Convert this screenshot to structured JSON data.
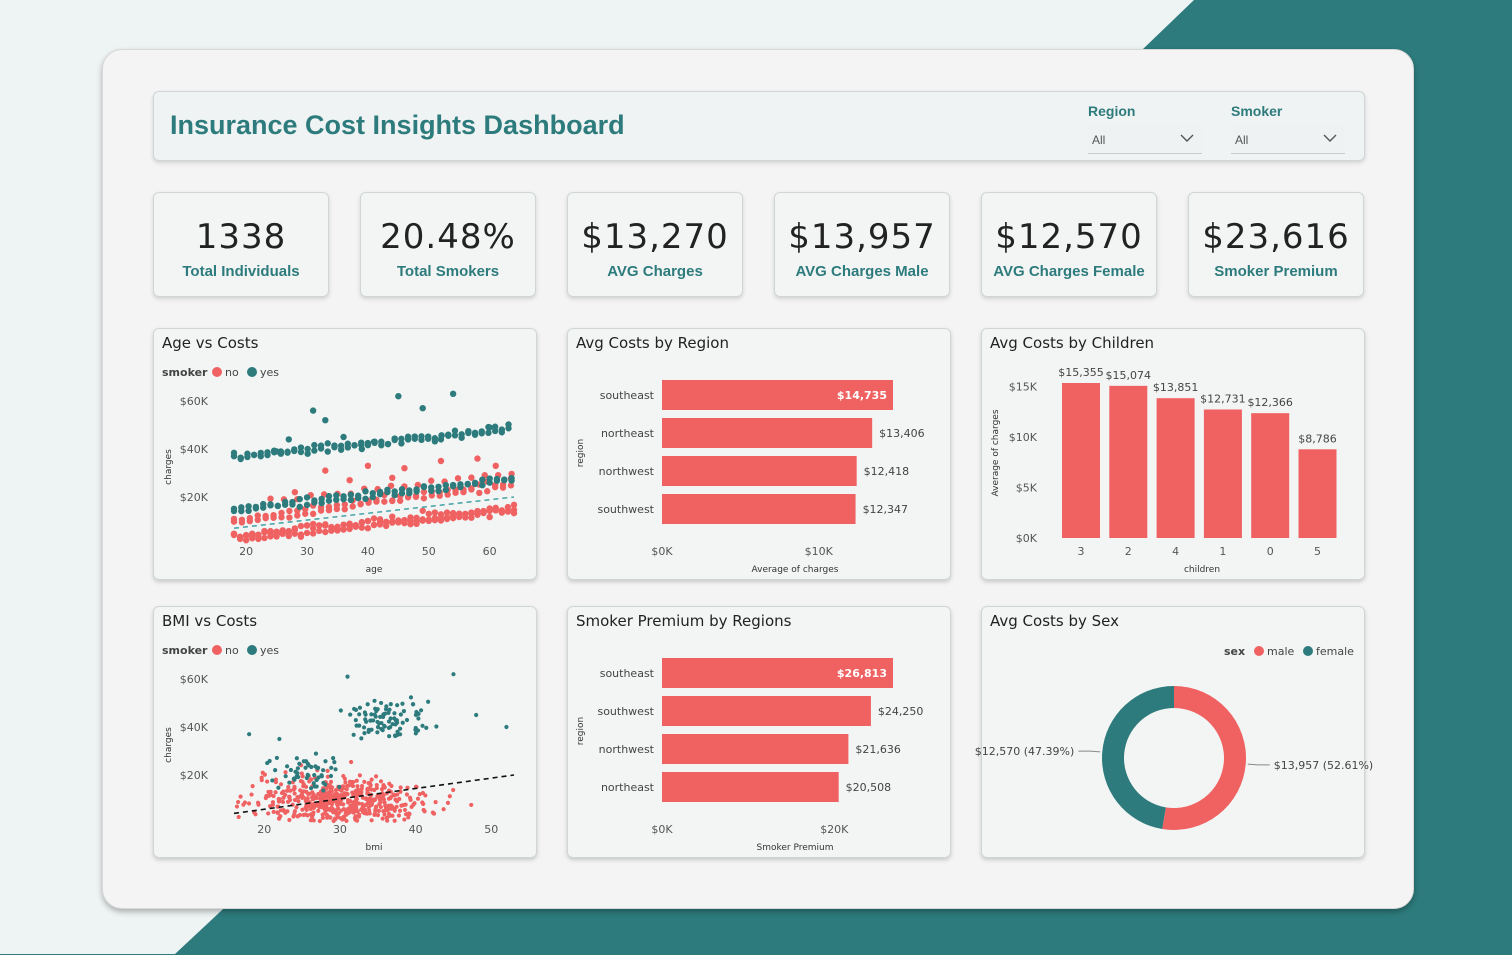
{
  "header": {
    "title": "Insurance Cost Insights Dashboard",
    "slicers": [
      {
        "label": "Region",
        "value": "All"
      },
      {
        "label": "Smoker",
        "value": "All"
      }
    ]
  },
  "kpis": [
    {
      "value": "1338",
      "label": "Total Individuals"
    },
    {
      "value": "20.48%",
      "label": "Total Smokers"
    },
    {
      "value": "$13,270",
      "label": "AVG Charges"
    },
    {
      "value": "$13,957",
      "label": "AVG Charges Male"
    },
    {
      "value": "$12,570",
      "label": "AVG Charges Female"
    },
    {
      "value": "$23,616",
      "label": "Smoker Premium"
    }
  ],
  "colors": {
    "coral": "#f06262",
    "teal": "#2d7b7c"
  },
  "chart_data": [
    {
      "id": "age",
      "type": "scatter",
      "title": "Age vs Costs",
      "xlabel": "age",
      "ylabel": "charges",
      "xlim": [
        18,
        64
      ],
      "ylim": [
        0,
        65000
      ],
      "xticks": [
        20,
        30,
        40,
        50,
        60
      ],
      "yticks": [
        {
          "v": 20000,
          "label": "$20K"
        },
        {
          "v": 40000,
          "label": "$40K"
        },
        {
          "v": 60000,
          "label": "$60K"
        }
      ],
      "legend": {
        "title": "smoker",
        "items": [
          "no",
          "yes"
        ],
        "placement": "top-left"
      },
      "series": [
        {
          "name": "no",
          "color": "#f06262",
          "bands": [
            {
              "x0": 18,
              "x1": 64,
              "y0": 2000,
              "y1": 14000,
              "step": 1,
              "rows": [
                0,
                0.35,
                0.7
              ]
            },
            {
              "x0": 18,
              "x1": 64,
              "y0": 9000,
              "y1": 25000,
              "step": 1.3,
              "rows": [
                0,
                0.5
              ]
            },
            {
              "x0": 24,
              "x1": 64,
              "y0": 18000,
              "y1": 30000,
              "step": 2.2,
              "rows": [
                0
              ]
            }
          ],
          "outliers": [
            [
              28,
              22000
            ],
            [
              33,
              31000
            ],
            [
              40,
              33000
            ],
            [
              46,
              32000
            ],
            [
              52,
              35000
            ],
            [
              58,
              36000
            ],
            [
              61,
              33000
            ],
            [
              44,
              28000
            ],
            [
              37,
              27000
            ]
          ]
        },
        {
          "name": "yes",
          "color": "#2d7b7c",
          "bands": [
            {
              "x0": 18,
              "x1": 64,
              "y0": 14000,
              "y1": 27000,
              "step": 1.2,
              "rows": [
                0,
                0.5
              ]
            },
            {
              "x0": 18,
              "x1": 64,
              "y0": 36000,
              "y1": 48000,
              "step": 1.1,
              "rows": [
                0,
                0.45
              ]
            }
          ],
          "outliers": [
            [
              27,
              44000
            ],
            [
              31,
              56000
            ],
            [
              33,
              52000
            ],
            [
              36,
              45000
            ],
            [
              41,
              43000
            ],
            [
              45,
              62000
            ],
            [
              49,
              57000
            ],
            [
              52,
              44000
            ],
            [
              54,
              63000
            ],
            [
              60,
              49000
            ],
            [
              25,
              39000
            ],
            [
              39,
              40000
            ]
          ]
        }
      ],
      "trend": {
        "x": [
          18,
          64
        ],
        "y": [
          7000,
          20000
        ],
        "color": "#4fa7a8"
      }
    },
    {
      "id": "region",
      "type": "bar",
      "orientation": "horizontal",
      "title": "Avg Costs by Region",
      "xlabel": "Average of charges",
      "ylabel": "region",
      "categories": [
        "southeast",
        "northeast",
        "northwest",
        "southwest"
      ],
      "values": [
        14735,
        13406,
        12418,
        12347
      ],
      "value_labels": [
        "$14,735",
        "$13,406",
        "$12,418",
        "$12,347"
      ],
      "xlim": [
        0,
        14735
      ],
      "xticks": [
        {
          "v": 0,
          "label": "$0K"
        },
        {
          "v": 10000,
          "label": "$10K"
        }
      ]
    },
    {
      "id": "children",
      "type": "bar",
      "orientation": "vertical",
      "title": "Avg Costs by Children",
      "xlabel": "children",
      "ylabel": "Average of charges",
      "categories": [
        "3",
        "2",
        "4",
        "1",
        "0",
        "5"
      ],
      "values": [
        15355,
        15074,
        13851,
        12731,
        12366,
        8786
      ],
      "value_labels": [
        "$15,355",
        "$15,074",
        "$13,851",
        "$12,731",
        "$12,366",
        "$8,786"
      ],
      "ylim": [
        0,
        15355
      ],
      "yticks": [
        {
          "v": 0,
          "label": "$0K"
        },
        {
          "v": 5000,
          "label": "$5K"
        },
        {
          "v": 10000,
          "label": "$10K"
        },
        {
          "v": 15000,
          "label": "$15K"
        }
      ]
    },
    {
      "id": "bmi",
      "type": "scatter",
      "title": "BMI vs Costs",
      "xlabel": "bmi",
      "ylabel": "charges",
      "xlim": [
        16,
        53
      ],
      "ylim": [
        0,
        65000
      ],
      "xticks": [
        20,
        30,
        40,
        50
      ],
      "yticks": [
        {
          "v": 20000,
          "label": "$20K"
        },
        {
          "v": 40000,
          "label": "$40K"
        },
        {
          "v": 60000,
          "label": "$60K"
        }
      ],
      "legend": {
        "title": "smoker",
        "items": [
          "no",
          "yes"
        ],
        "placement": "top-left"
      },
      "series": [
        {
          "name": "no",
          "color": "#f06262",
          "clusters": [
            {
              "cx": 30,
              "sx": 5.5,
              "cy": 8500,
              "sy": 5500,
              "n": 520,
              "xmin": 16,
              "xmax": 53,
              "ymin": 800,
              "ymax": 30000
            }
          ]
        },
        {
          "name": "yes",
          "color": "#2d7b7c",
          "clusters": [
            {
              "cx": 26,
              "sx": 2.5,
              "cy": 21000,
              "sy": 4000,
              "n": 55,
              "xmin": 17,
              "xmax": 30,
              "ymin": 13000,
              "ymax": 30000
            },
            {
              "cx": 36,
              "sx": 3.2,
              "cy": 43000,
              "sy": 4500,
              "n": 90,
              "xmin": 30,
              "xmax": 48,
              "ymin": 35000,
              "ymax": 53000
            }
          ],
          "outliers": [
            [
              22,
              35000
            ],
            [
              18,
              37000
            ],
            [
              31,
              61000
            ],
            [
              45,
              62000
            ],
            [
              52,
              40000
            ],
            [
              48,
              45000
            ]
          ]
        }
      ],
      "trend": {
        "x": [
          16,
          53
        ],
        "y": [
          4000,
          20000
        ],
        "color": "#111111"
      }
    },
    {
      "id": "premium",
      "type": "bar",
      "orientation": "horizontal",
      "title": "Smoker Premium by Regions",
      "xlabel": "Smoker Premium",
      "ylabel": "region",
      "categories": [
        "southeast",
        "southwest",
        "northwest",
        "northeast"
      ],
      "values": [
        26813,
        24250,
        21636,
        20508
      ],
      "value_labels": [
        "$26,813",
        "$24,250",
        "$21,636",
        "$20,508"
      ],
      "xlim": [
        0,
        26813
      ],
      "xticks": [
        {
          "v": 0,
          "label": "$0K"
        },
        {
          "v": 20000,
          "label": "$20K"
        }
      ]
    },
    {
      "id": "sex",
      "type": "pie",
      "donut": true,
      "title": "Avg Costs by Sex",
      "legend": {
        "title": "sex",
        "items": [
          "male",
          "female"
        ],
        "placement": "top-right"
      },
      "slices": [
        {
          "name": "male",
          "value": 13957,
          "label": "$13,957 (52.61%)",
          "color": "#f06262"
        },
        {
          "name": "female",
          "value": 12570,
          "label": "$12,570 (47.39%)",
          "color": "#2d7b7c"
        }
      ]
    }
  ]
}
